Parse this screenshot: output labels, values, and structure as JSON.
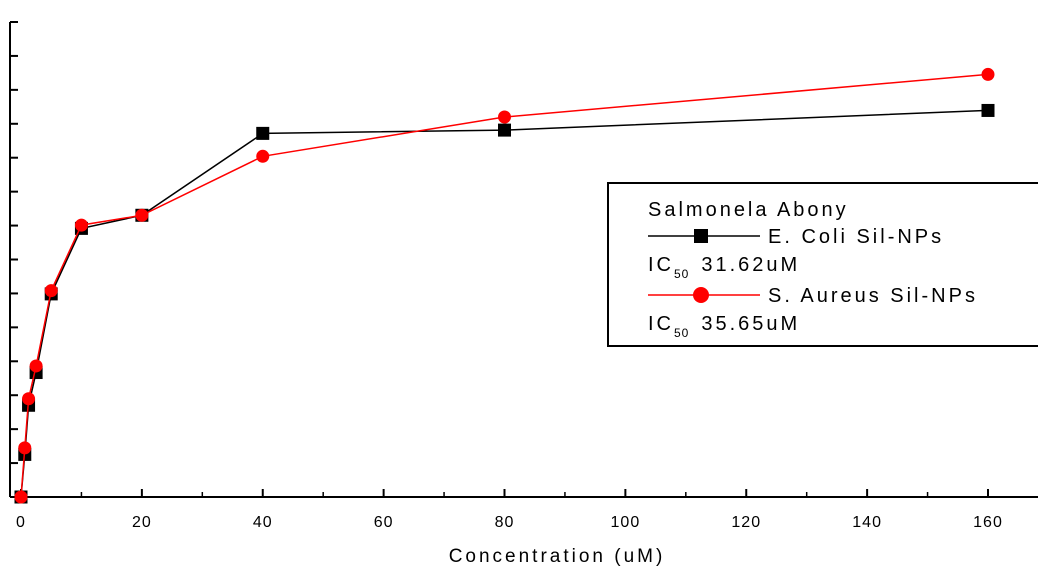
{
  "chart_data": {
    "type": "line",
    "xlabel": "Concentration (uM)",
    "ylabel": "",
    "xlim": [
      -1,
      168
    ],
    "x_ticks": [
      0,
      20,
      40,
      60,
      80,
      100,
      120,
      140,
      160
    ],
    "ylim": [
      0,
      14.5
    ],
    "y_tick_count": 15,
    "grid": false,
    "legend": {
      "position": "right",
      "title": "Salmonela Abony",
      "entries": [
        {
          "label": "E. Coli Sil-NPs",
          "ic_prefix": "IC",
          "ic_sub": "50",
          "ic_value": "31.62uM"
        },
        {
          "label": "S. Aureus Sil-NPs",
          "ic_prefix": "IC",
          "ic_sub": "50",
          "ic_value": "35.65uM"
        }
      ]
    },
    "series": [
      {
        "name": "E. Coli Sil-NPs",
        "color": "#000000",
        "marker": "square",
        "x": [
          0,
          0.625,
          1.25,
          2.5,
          5,
          10,
          20,
          40,
          80,
          160
        ],
        "y": [
          0,
          1.3,
          2.8,
          3.8,
          6.2,
          8.2,
          8.6,
          11.1,
          11.2,
          11.8
        ]
      },
      {
        "name": "S. Aureus Sil-NPs",
        "color": "#ff0000",
        "marker": "circle",
        "x": [
          0,
          0.625,
          1.25,
          2.5,
          5,
          10,
          20,
          40,
          80,
          160
        ],
        "y": [
          0,
          1.5,
          3.0,
          4.0,
          6.3,
          8.3,
          8.6,
          10.4,
          11.6,
          12.9
        ]
      }
    ]
  }
}
